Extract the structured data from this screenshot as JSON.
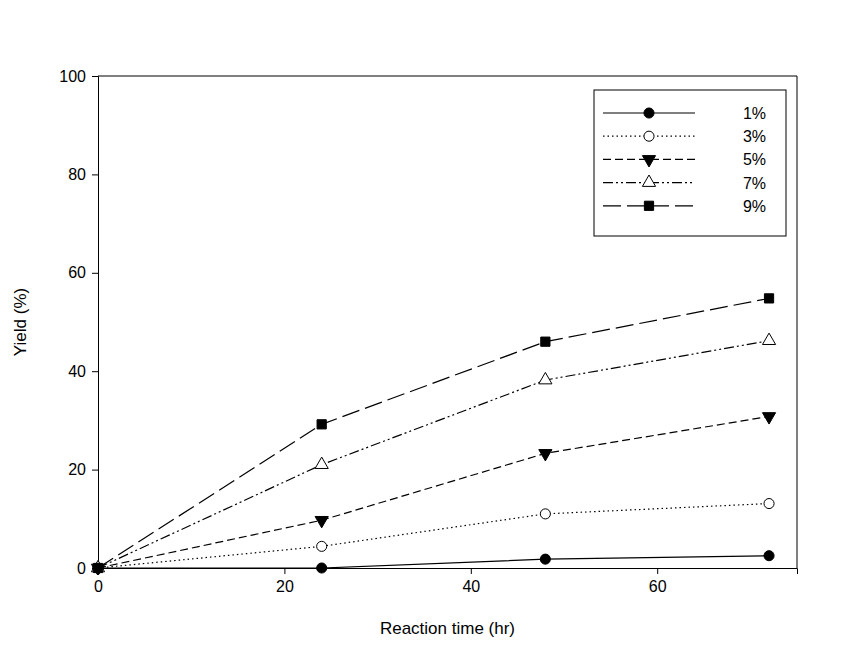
{
  "chart_data": {
    "type": "line",
    "x_label": "Reaction time (hr)",
    "y_label": "Yield (%)",
    "x": [
      0,
      24,
      48,
      72
    ],
    "xlim": [
      0,
      75
    ],
    "xticks": [
      0,
      20,
      40,
      60
    ],
    "ylim": [
      0,
      100
    ],
    "yticks": [
      0,
      20,
      40,
      60,
      80,
      100
    ],
    "grid": false,
    "legend": "upper right",
    "series": [
      {
        "name": "1%",
        "color": "#000000",
        "marker": "circle",
        "line_style": "solid",
        "values": [
          0,
          0,
          1.8,
          2.5
        ]
      },
      {
        "name": "3%",
        "color": "#000000",
        "marker": "circle-open",
        "line_style": "dotted",
        "values": [
          0,
          4.4,
          11,
          13.1
        ]
      },
      {
        "name": "5%",
        "color": "#000000",
        "marker": "triangle-down",
        "line_style": "dashed",
        "values": [
          0,
          9.7,
          23.3,
          30.8
        ]
      },
      {
        "name": "7%",
        "color": "#000000",
        "marker": "triangle-up-open",
        "line_style": "dash-dot-dot",
        "values": [
          0,
          21,
          38.2,
          46.2
        ]
      },
      {
        "name": "9%",
        "color": "#000000",
        "marker": "square",
        "line_style": "long-dash",
        "values": [
          0,
          29.2,
          46,
          54.8
        ]
      }
    ]
  }
}
